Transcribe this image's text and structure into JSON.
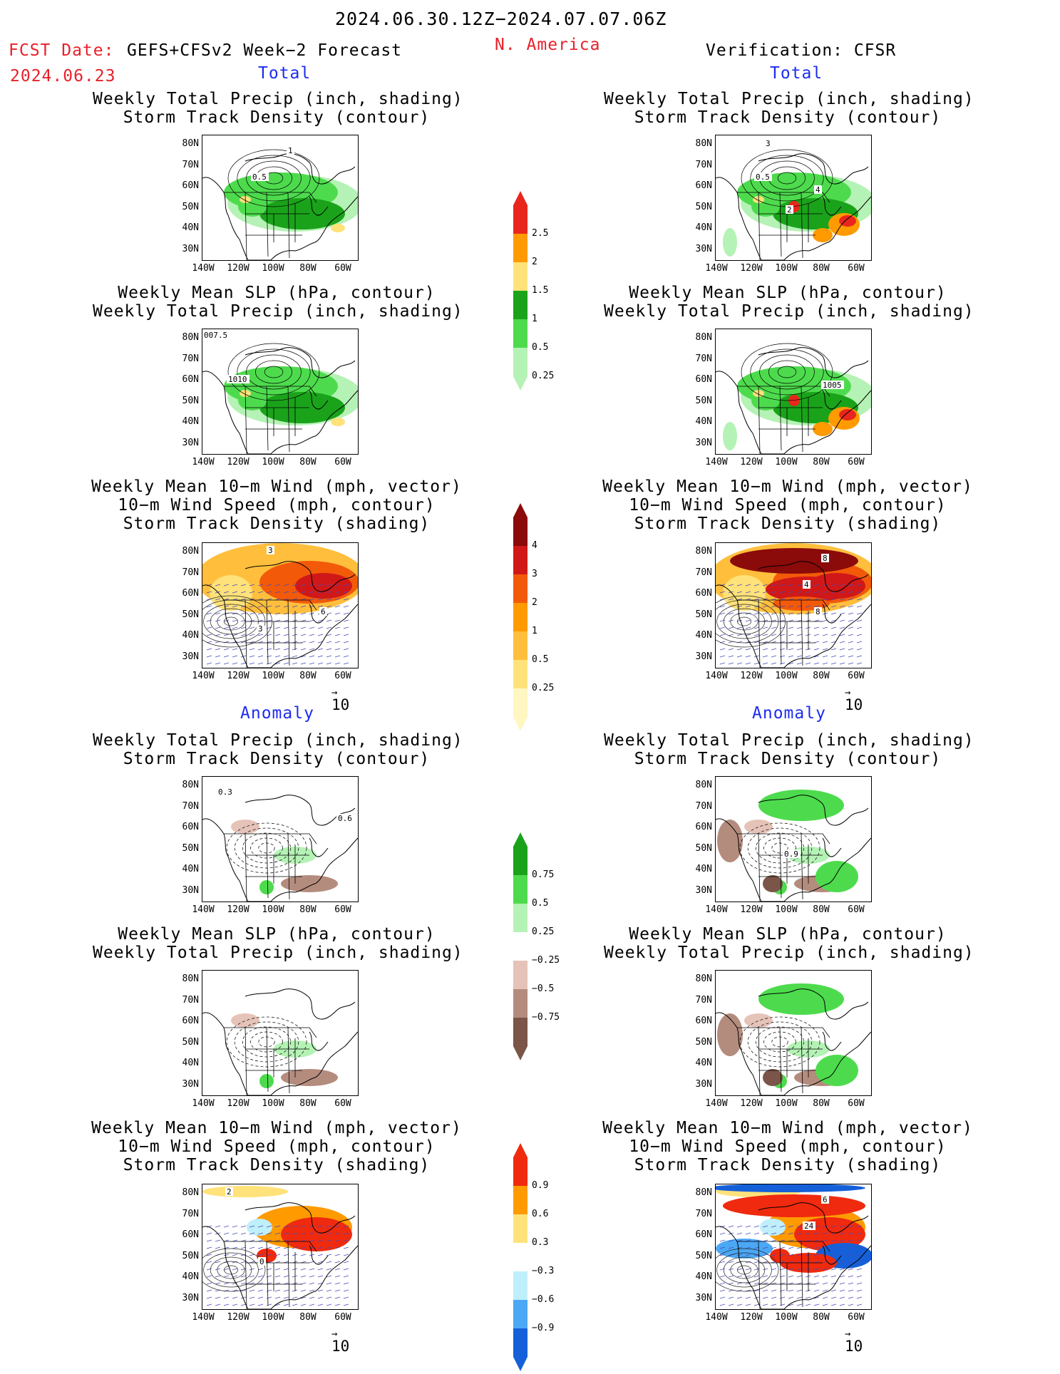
{
  "header": {
    "period": "2024.06.30.12Z−2024.07.07.06Z",
    "fcst_date_label": "FCST Date:",
    "fcst_model": "GEFS+CFSv2 Week−2 Forecast",
    "fcst_date": "2024.06.23",
    "region": "N. America",
    "verification": "Verification: CFSR"
  },
  "sections": {
    "total": "Total",
    "anomaly": "Anomaly"
  },
  "titles": {
    "precip_track": [
      "Weekly Total Precip (inch, shading)",
      "Storm Track Density (contour)"
    ],
    "slp_precip": [
      "Weekly Mean SLP (hPa, contour)",
      "Weekly Total Precip (inch, shading)"
    ],
    "wind_track": [
      "Weekly Mean 10−m Wind (mph, vector)",
      "10−m Wind Speed (mph, contour)",
      "Storm Track Density (shading)"
    ]
  },
  "axes": {
    "lat_labels": [
      "80N",
      "70N",
      "60N",
      "50N",
      "40N",
      "30N"
    ],
    "lon_labels": [
      "140W",
      "120W",
      "100W",
      "80W",
      "60W"
    ]
  },
  "vector_ref": "10",
  "panel_labels": {
    "fcst_total_track": [
      "1",
      "0.5"
    ],
    "fcst_total_slp": [
      "007.5",
      "1010"
    ],
    "fcst_total_wind": [
      "3",
      "6",
      "3"
    ],
    "fcst_anom_track": [
      "0.3",
      "0.6"
    ],
    "fcst_anom_wind": [
      "2",
      "0"
    ],
    "ver_total_track": [
      "3",
      "0.5",
      "4",
      "2"
    ],
    "ver_total_slp": [
      "1005"
    ],
    "ver_total_wind": [
      "8",
      "4",
      "8"
    ],
    "ver_anom_track": [
      "0.9"
    ],
    "ver_anom_wind": [
      "6",
      "24"
    ]
  },
  "colorbars": {
    "precip_total": {
      "labels": [
        "2.5",
        "2",
        "1.5",
        "1",
        "0.5",
        "0.25"
      ],
      "colors": [
        "#e8261e",
        "#ff9a00",
        "#ffe27a",
        "#1aa31a",
        "#4ddb4d",
        "#b5f2b5"
      ]
    },
    "track_total": {
      "labels": [
        "4",
        "3",
        "2",
        "1",
        "0.5",
        "0.25"
      ],
      "colors": [
        "#8b0a0a",
        "#d01818",
        "#f25a0a",
        "#ff9a00",
        "#ffbf3d",
        "#ffe27a",
        "#fff6c2"
      ]
    },
    "precip_anom": {
      "labels": [
        "0.75",
        "0.5",
        "0.25",
        "−0.25",
        "−0.5",
        "−0.75"
      ],
      "colors": [
        "#1aa31a",
        "#4ddb4d",
        "#b5f2b5",
        "#ffffff",
        "#e5c3b8",
        "#b48c7e",
        "#7a5548"
      ]
    },
    "track_anom": {
      "labels": [
        "0.9",
        "0.6",
        "0.3",
        "−0.3",
        "−0.6",
        "−0.9"
      ],
      "colors": [
        "#f02a0e",
        "#ff9a00",
        "#ffe27a",
        "#ffffff",
        "#bfeffb",
        "#4ba8f5",
        "#1560d8"
      ]
    }
  }
}
